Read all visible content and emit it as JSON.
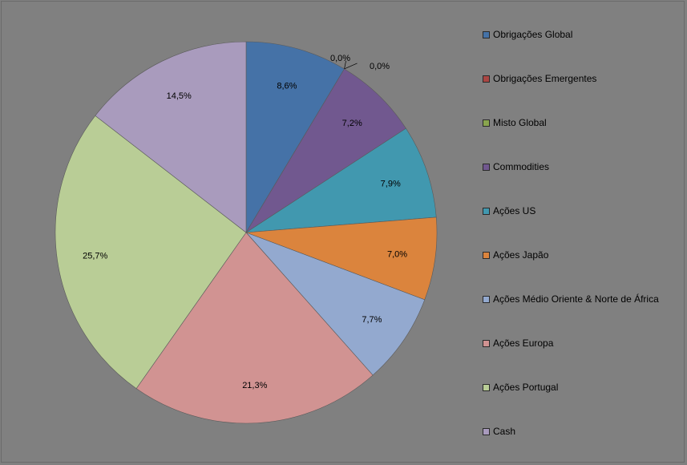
{
  "chart_data": {
    "type": "pie",
    "series": [
      {
        "name": "Obrigações Global",
        "value": 8.6,
        "label": "8,6%",
        "color": "#4572A7"
      },
      {
        "name": "Obrigações Emergentes",
        "value": 0.0,
        "label": "0,0%",
        "color": "#AA4643"
      },
      {
        "name": "Misto Global",
        "value": 0.0,
        "label": "0,0%",
        "color": "#89A54E"
      },
      {
        "name": "Commodities",
        "value": 7.2,
        "label": "7,2%",
        "color": "#71588F"
      },
      {
        "name": "Ações US",
        "value": 7.9,
        "label": "7,9%",
        "color": "#4198AF"
      },
      {
        "name": "Ações Japão",
        "value": 7.0,
        "label": "7,0%",
        "color": "#DB843D"
      },
      {
        "name": "Ações Médio Oriente & Norte de África",
        "value": 7.7,
        "label": "7,7%",
        "color": "#93A9CF"
      },
      {
        "name": "Ações Europa",
        "value": 21.3,
        "label": "21,3%",
        "color": "#D19392"
      },
      {
        "name": "Ações Portugal",
        "value": 25.7,
        "label": "25,7%",
        "color": "#B9CD96"
      },
      {
        "name": "Cash",
        "value": 14.5,
        "label": "14,5%",
        "color": "#A99BBD"
      }
    ],
    "legend_position": "right",
    "background_color": "#808080"
  }
}
